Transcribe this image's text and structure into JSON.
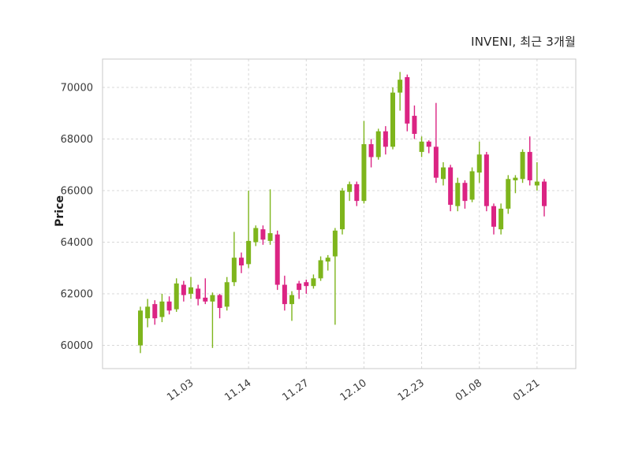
{
  "header": {
    "title": "INVENI, 최근 3개월"
  },
  "chart_data": {
    "type": "candlestick",
    "title": "INVENI, 최근 3개월",
    "xlabel": "",
    "ylabel": "Price",
    "ylim": [
      59100,
      71100
    ],
    "yticks": [
      60000,
      62000,
      64000,
      66000,
      68000,
      70000
    ],
    "xticks": [
      {
        "index": 7,
        "label": "11.03"
      },
      {
        "index": 15,
        "label": "11.14"
      },
      {
        "index": 23,
        "label": "11.27"
      },
      {
        "index": 31,
        "label": "12.10"
      },
      {
        "index": 39,
        "label": "12.23"
      },
      {
        "index": 47,
        "label": "01.08"
      },
      {
        "index": 55,
        "label": "01.21"
      }
    ],
    "grid": true,
    "legend": "none",
    "colors": {
      "up": "#7EB51C",
      "down": "#DB2483",
      "grid": "#d8d8d8",
      "frame": "#c8c8c8",
      "tick_text": "#3a3a3a",
      "background": "#ffffff"
    },
    "candles_format": [
      "open",
      "high",
      "low",
      "close"
    ],
    "candles": [
      [
        60000,
        61500,
        59700,
        61350
      ],
      [
        61050,
        61800,
        60700,
        61500
      ],
      [
        61600,
        61750,
        60800,
        61050
      ],
      [
        61100,
        62000,
        60900,
        61700
      ],
      [
        61700,
        61900,
        61200,
        61350
      ],
      [
        61400,
        62600,
        61300,
        62400
      ],
      [
        62350,
        62500,
        61700,
        61950
      ],
      [
        62000,
        62650,
        61800,
        62250
      ],
      [
        62200,
        62350,
        61550,
        61800
      ],
      [
        61850,
        62600,
        61600,
        61700
      ],
      [
        61700,
        62050,
        59900,
        61950
      ],
      [
        61950,
        62000,
        61050,
        61450
      ],
      [
        61500,
        62650,
        61350,
        62450
      ],
      [
        62450,
        64400,
        62300,
        63400
      ],
      [
        63400,
        63600,
        62800,
        63100
      ],
      [
        63150,
        66000,
        63000,
        64050
      ],
      [
        64000,
        64650,
        63850,
        64550
      ],
      [
        64500,
        64650,
        63900,
        64100
      ],
      [
        64050,
        66050,
        63900,
        64350
      ],
      [
        64300,
        64450,
        62150,
        62350
      ],
      [
        62350,
        62700,
        61350,
        61600
      ],
      [
        61600,
        62100,
        60950,
        61950
      ],
      [
        62400,
        62500,
        61800,
        62150
      ],
      [
        62450,
        62550,
        62000,
        62300
      ],
      [
        62300,
        62750,
        62200,
        62600
      ],
      [
        62600,
        63450,
        62500,
        63300
      ],
      [
        63250,
        63500,
        62900,
        63400
      ],
      [
        63450,
        64550,
        60800,
        64450
      ],
      [
        64500,
        66100,
        64300,
        66000
      ],
      [
        65950,
        66350,
        65600,
        66250
      ],
      [
        66250,
        66350,
        65400,
        65600
      ],
      [
        65600,
        68700,
        65500,
        67800
      ],
      [
        67800,
        68000,
        66900,
        67300
      ],
      [
        67300,
        68400,
        67200,
        68300
      ],
      [
        68300,
        68500,
        67400,
        67700
      ],
      [
        67700,
        70000,
        67600,
        69800
      ],
      [
        69800,
        70600,
        69100,
        70300
      ],
      [
        70400,
        70500,
        68300,
        68600
      ],
      [
        68900,
        69300,
        68000,
        68200
      ],
      [
        67500,
        68100,
        67300,
        67900
      ],
      [
        67900,
        67950,
        67450,
        67700
      ],
      [
        67700,
        69400,
        66300,
        66500
      ],
      [
        66450,
        67100,
        66200,
        66900
      ],
      [
        66900,
        67000,
        65200,
        65450
      ],
      [
        65400,
        66500,
        65200,
        66300
      ],
      [
        66300,
        66400,
        65300,
        65600
      ],
      [
        65650,
        66900,
        65550,
        66750
      ],
      [
        66700,
        67900,
        66300,
        67400
      ],
      [
        67400,
        67500,
        65200,
        65400
      ],
      [
        65400,
        65500,
        64300,
        64600
      ],
      [
        64500,
        65500,
        64300,
        65300
      ],
      [
        65300,
        66600,
        65100,
        66450
      ],
      [
        66400,
        66600,
        65900,
        66500
      ],
      [
        66450,
        67600,
        66300,
        67500
      ],
      [
        67500,
        68100,
        66200,
        66400
      ],
      [
        66200,
        67100,
        66000,
        66350
      ],
      [
        66350,
        66450,
        65000,
        65400
      ]
    ]
  }
}
